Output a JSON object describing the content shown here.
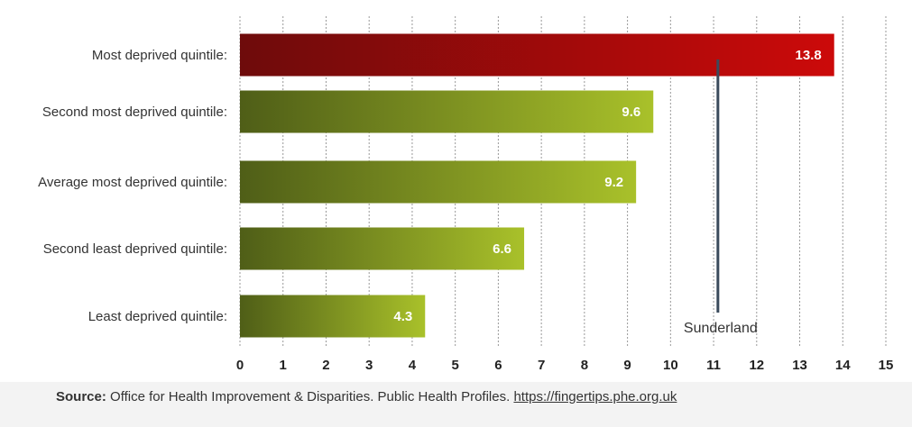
{
  "chart_data": {
    "type": "bar",
    "orientation": "horizontal",
    "categories": [
      "Most deprived quintile:",
      "Second most deprived quintile:",
      "Average most deprived quintile:",
      "Second least deprived quintile:",
      "Least deprived quintile:"
    ],
    "values": [
      13.8,
      9.6,
      9.2,
      6.6,
      4.3
    ],
    "value_labels": [
      "13.8",
      "9.6",
      "9.2",
      "6.6",
      "4.3"
    ],
    "xlim": [
      0,
      15
    ],
    "xticks": [
      0,
      1,
      2,
      3,
      4,
      5,
      6,
      7,
      8,
      9,
      10,
      11,
      12,
      13,
      14,
      15
    ],
    "grid": true,
    "reference_line": {
      "label": "Sunderland",
      "value": 11.1,
      "color": "#3a4a5c"
    },
    "colors": {
      "highlight": "#cc0a0a",
      "highlight_dark": "#6e0b0b",
      "bar": "#a9c12a",
      "bar_dark": "#4f5e17",
      "grid": "#999999"
    }
  },
  "source": {
    "prefix": "Source:",
    "text": "Office for Health Improvement & Disparities. Public Health Profiles.",
    "link": "https://fingertips.phe.org.uk"
  }
}
